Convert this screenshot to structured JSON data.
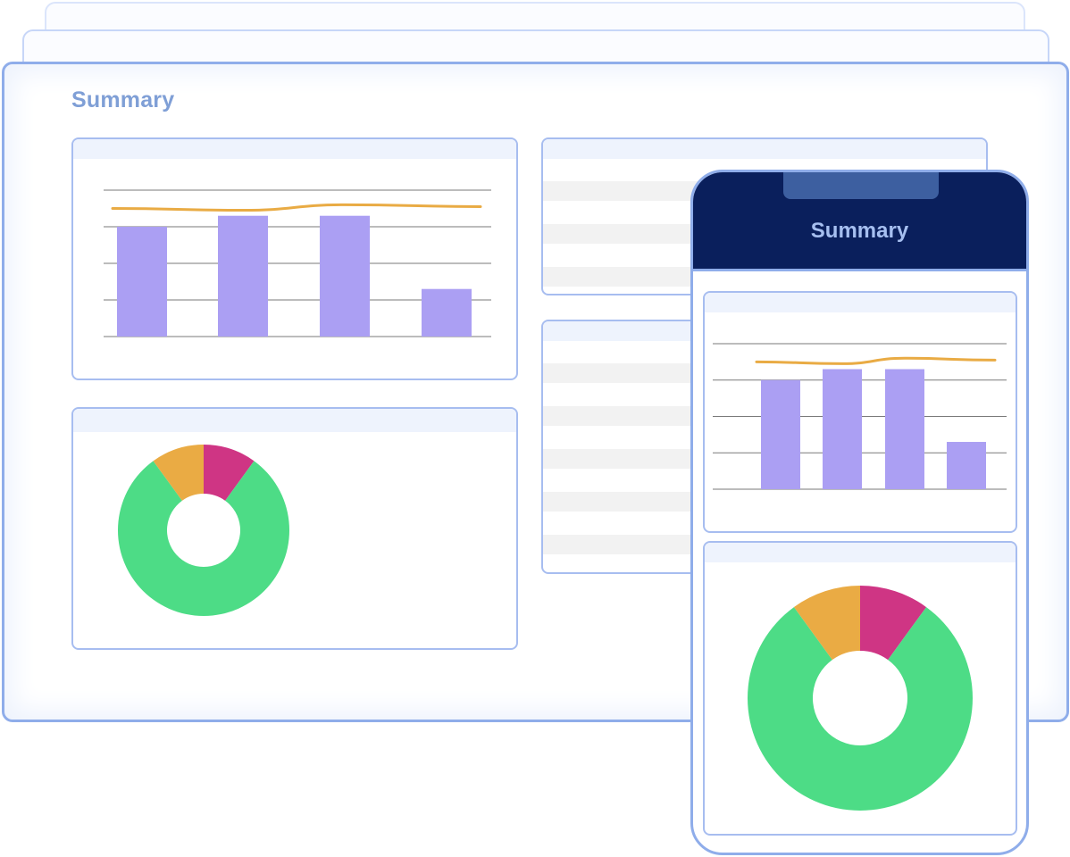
{
  "desktop": {
    "title": "Summary"
  },
  "phone": {
    "title": "Summary"
  },
  "colors": {
    "bar": "#ab9ff3",
    "trend_line": "#e9ab44",
    "donut_green": "#4ddc86",
    "donut_magenta": "#cf3584",
    "donut_orange": "#eaab44",
    "border": "#8fadea",
    "phone_header": "#0a1f5c"
  },
  "chart_data": [
    {
      "type": "bar",
      "categories": [
        "",
        "",
        "",
        ""
      ],
      "values": [
        3.0,
        3.3,
        3.3,
        1.3
      ],
      "trend": [
        3.5,
        3.45,
        3.6,
        3.55
      ],
      "ylim": [
        0,
        4
      ],
      "grid": true
    },
    {
      "type": "pie",
      "donut": true,
      "slices": [
        {
          "color": "#cf3584",
          "value": 10
        },
        {
          "color": "#4ddc86",
          "value": 80
        },
        {
          "color": "#eaab44",
          "value": 10
        }
      ]
    }
  ]
}
